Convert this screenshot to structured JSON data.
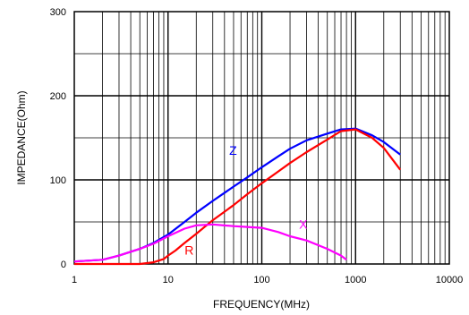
{
  "chart_data": {
    "type": "line",
    "title": "",
    "xlabel": "FREQUENCY(MHz)",
    "ylabel": "IMPEDANCE(Ohm)",
    "x_scale": "log",
    "xlim": [
      1,
      10000
    ],
    "ylim": [
      0,
      300
    ],
    "x_ticks": [
      {
        "value": 1,
        "label": "1"
      },
      {
        "value": 10,
        "label": "10"
      },
      {
        "value": 100,
        "label": "100"
      },
      {
        "value": 1000,
        "label": "1000"
      },
      {
        "value": 10000,
        "label": "10000"
      }
    ],
    "y_ticks": [
      {
        "value": 0,
        "label": "0"
      },
      {
        "value": 100,
        "label": "100"
      },
      {
        "value": 200,
        "label": "200"
      },
      {
        "value": 300,
        "label": "300"
      }
    ],
    "grid": true,
    "series": [
      {
        "name": "Z",
        "color": "#0000ff",
        "label_at": [
          45,
          130
        ],
        "points": [
          [
            1,
            3
          ],
          [
            2,
            5
          ],
          [
            3,
            10
          ],
          [
            5,
            18
          ],
          [
            7,
            25
          ],
          [
            10,
            35
          ],
          [
            15,
            50
          ],
          [
            20,
            61
          ],
          [
            30,
            75
          ],
          [
            50,
            92
          ],
          [
            70,
            103
          ],
          [
            100,
            115
          ],
          [
            150,
            128
          ],
          [
            200,
            137
          ],
          [
            300,
            147
          ],
          [
            500,
            155
          ],
          [
            700,
            160
          ],
          [
            1000,
            161
          ],
          [
            1500,
            153
          ],
          [
            2000,
            145
          ],
          [
            3000,
            130
          ]
        ]
      },
      {
        "name": "R",
        "color": "#ff0000",
        "label_at": [
          15,
          11
        ],
        "points": [
          [
            1,
            0
          ],
          [
            3,
            0
          ],
          [
            5,
            0
          ],
          [
            7,
            2
          ],
          [
            9,
            6
          ],
          [
            10,
            10
          ],
          [
            12,
            16
          ],
          [
            15,
            25
          ],
          [
            20,
            36
          ],
          [
            30,
            52
          ],
          [
            50,
            70
          ],
          [
            70,
            83
          ],
          [
            100,
            96
          ],
          [
            150,
            110
          ],
          [
            200,
            120
          ],
          [
            300,
            133
          ],
          [
            500,
            148
          ],
          [
            700,
            158
          ],
          [
            1000,
            160
          ],
          [
            1500,
            150
          ],
          [
            2000,
            138
          ],
          [
            3000,
            112
          ]
        ]
      },
      {
        "name": "X",
        "color": "#ff00ff",
        "label_at": [
          250,
          42
        ],
        "points": [
          [
            1,
            3
          ],
          [
            2,
            5
          ],
          [
            3,
            10
          ],
          [
            5,
            18
          ],
          [
            7,
            24
          ],
          [
            10,
            33
          ],
          [
            15,
            42
          ],
          [
            20,
            46
          ],
          [
            30,
            47
          ],
          [
            50,
            45
          ],
          [
            70,
            44
          ],
          [
            100,
            43
          ],
          [
            150,
            38
          ],
          [
            200,
            33
          ],
          [
            300,
            28
          ],
          [
            500,
            18
          ],
          [
            700,
            10
          ],
          [
            800,
            5
          ]
        ]
      }
    ]
  }
}
